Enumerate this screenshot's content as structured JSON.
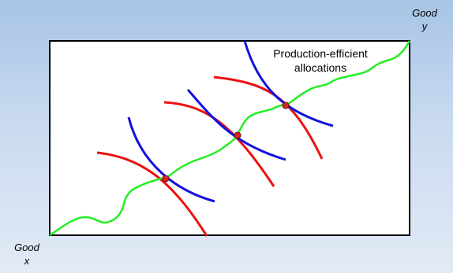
{
  "diagram": {
    "axis_labels": {
      "good_y": {
        "line1": "Good",
        "line2": "y"
      },
      "good_x": {
        "line1": "Good",
        "line2": "x"
      }
    },
    "curve_label": {
      "line1": "Production-efficient",
      "line2": "allocations"
    },
    "colors": {
      "background_top": "#a8c4e6",
      "background_bottom": "#e2eaf5",
      "box_fill": "#ffffff",
      "box_stroke": "#000000",
      "efficiency_curve": "#22ee22",
      "red_isoquant": "#ee1111",
      "blue_isoquant": "#1111dd",
      "tangency_point_fill": "#dd2222",
      "tangency_point_stroke": "#551111"
    },
    "tangency_point_count": 3
  }
}
